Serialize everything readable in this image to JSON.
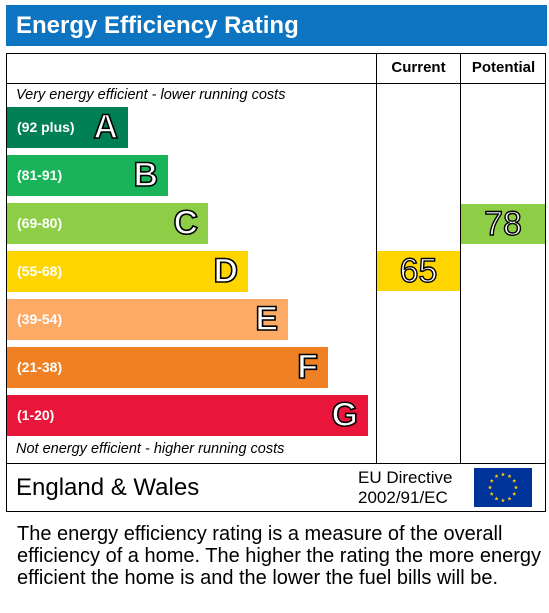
{
  "header": {
    "title": "Energy Efficiency Rating"
  },
  "columns": {
    "current": "Current",
    "potential": "Potential"
  },
  "captions": {
    "top": "Very energy efficient - lower running costs",
    "bottom": "Not energy efficient - higher running costs"
  },
  "bands": [
    {
      "range": "(92 plus)",
      "letter": "A",
      "color": "#008054"
    },
    {
      "range": "(81-91)",
      "letter": "B",
      "color": "#19b459"
    },
    {
      "range": "(69-80)",
      "letter": "C",
      "color": "#8dce46"
    },
    {
      "range": "(55-68)",
      "letter": "D",
      "color": "#ffd500"
    },
    {
      "range": "(39-54)",
      "letter": "E",
      "color": "#fcaa65"
    },
    {
      "range": "(21-38)",
      "letter": "F",
      "color": "#ef8023"
    },
    {
      "range": "(1-20)",
      "letter": "G",
      "color": "#e9153b"
    }
  ],
  "ratings": {
    "current": {
      "value": "65",
      "band": "D",
      "color": "#ffd500"
    },
    "potential": {
      "value": "78",
      "band": "C",
      "color": "#8dce46"
    }
  },
  "footer": {
    "country": "England & Wales",
    "directive_line1": "EU Directive",
    "directive_line2": "2002/91/EC"
  },
  "flag": {
    "icon": "eu-flag-icon",
    "background": "#003399",
    "star_color": "#ffcc00"
  },
  "note": "The energy efficiency rating is a measure of the overall efficiency of a home. The higher the rating the more energy efficient the home is and the lower the fuel bills will be."
}
